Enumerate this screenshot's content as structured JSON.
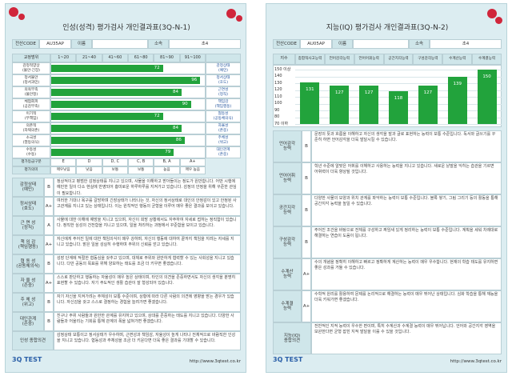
{
  "left": {
    "title": "인성(성격) 평가검사 개인결과표(3Q-N-1)",
    "info": {
      "code_label": "전산CODE",
      "code": "AU35AP",
      "name_label": "이름",
      "org_label": "소속",
      "org": "초4"
    },
    "scale": {
      "header_label": "교정범위",
      "headers": [
        "1~20",
        "21~40",
        "41~60",
        "61~80",
        "81~90",
        "91~100"
      ],
      "range": [
        0,
        100
      ],
      "rows": [
        {
          "left": "감정적양상\n(불안·긴장)",
          "right": "감정상태\n(예민)",
          "value": 72
        },
        {
          "left": "정서불안\n(정서과민)",
          "right": "정서상태\n(호도)",
          "value": 96
        },
        {
          "left": "의욕부족\n(불안정)",
          "right": "근면성\n(정직)",
          "value": 84
        },
        {
          "left": "체험회피\n(공감부족)",
          "right": "책임감\n(책임행동)",
          "value": 90
        },
        {
          "left": "이기적\n(무책임)",
          "right": "협동성\n(공동체의식)",
          "value": 72
        },
        {
          "left": "의존적\n(자택의존)",
          "right": "자율성\n(존중)",
          "value": 84
        },
        {
          "left": "소극성\n(열등의식)",
          "right": "주체성\n(위고)",
          "value": 86
        },
        {
          "left": "수동성\n(수동)",
          "right": "대인관계\n(존중)",
          "value": 79
        }
      ],
      "grade_label": "평가등급구분",
      "grades": [
        "E",
        "D",
        "D, C",
        "C, B",
        "B, A",
        "A+"
      ],
      "meaning_label": "평가의미",
      "meanings": [
        "매우낮음",
        "낮음",
        "보통",
        "보통",
        "높음",
        "매우 높음"
      ]
    },
    "details": [
      {
        "label": "감정상태\n(예민)",
        "grade": "B",
        "text": "정상적이고 평범한 감정상태를 지니고 있으며, 사물을 이해하고 받아들이는 정도가 원만합니다. 어떤 시행에 예민한 일이 다소 현실에 반영되어 흥미로운 하루하루를 지켜가고 있습니다. 감정의 안정을 위해 꾸준한 관심이 필요합니다."
      },
      {
        "label": "정서상태\n(호도)",
        "grade": "A+",
        "text": "여러한 기대나 욕구를 갈망하며 긴장상태가 나타나는 것, 자신의 정서상태로 대인의 안정감이 있고 안정된 사고관계를 지니고 있는 상태입니다. 이는 원칙적인 행동의 균형을 이루어 매우 좋은 결과를 보이고 있습니다."
      },
      {
        "label": "근 면 성\n(정직)",
        "grade": "A",
        "text": "사물에 대한 이해에 예방을 지니고 있으며, 자신이 희망 상황에서도 자주하여 자세로 접하는 정직함이 있습니다. 정직한 심성의 건전함을 지니고 있으며, 일을 처리하는 과정에서 꾸준함을 보이고 있습니다."
      },
      {
        "label": "책 임 감\n(책임행동)",
        "grade": "A+",
        "text": "자신에게 주어진 일에 대한 책임의식이 매우 강하며, 자신의 행동에 대하여 끝까지 책임을 지려는 자세를 지니고 있습니다. 맡은 일을 성실히 수행하며 주위의 신뢰를 얻고 있습니다."
      },
      {
        "label": "협 동 성\n(공동체의식)",
        "grade": "B",
        "text": "성장 단계에 적절한 협동심을 갖추고 있으며, 대체로 주위와 원만하게 협력할 수 있는 사회성을 지니고 있습니다. 다만 공동의 목표를 위해 양보하는 태도를 조금 더 키우면 좋겠습니다."
      },
      {
        "label": "자 율 성\n(존중)",
        "grade": "A+",
        "text": "스스로 판단하고 행동하는 자율성이 매우 높은 상태이며, 타인의 의견을 존중하면서도 자신의 생각을 분명히 표현할 수 있습니다. 자기 주도적인 생활 습관이 잘 형성되어 있습니다."
      },
      {
        "label": "주 체 성\n(위고)",
        "grade": "B",
        "text": "자기 자신을 지켜가려는 주체성이 보통 수준이며, 상황에 따라 다른 사람의 의견에 영향을 받는 경우가 있습니다. 자신감을 갖고 스스로 결정하는 경험을 늘려가면 좋겠습니다."
      },
      {
        "label": "대인관계\n(존중)",
        "grade": "B",
        "text": "친구나 주위 사람들과 원만한 관계를 유지하고 있으며, 상대를 존중하는 태도를 지니고 있습니다. 다양한 사람들과 어울리는 기회를 통해 관계의 폭을 넓혀가면 좋겠습니다."
      },
      {
        "label": "인성 종합의견",
        "grade": "",
        "text": "감정상태 보통이고 정서상태가 우수하며, 근면성과 책임감, 자율성이 높게 나타나 전체적으로 바람직한 인성을 지니고 있습니다. 협동성과 주체성을 조금 더 키운다면 더욱 좋은 결과를 기대할 수 있습니다."
      }
    ],
    "footer": {
      "logo": "3Q TEST",
      "url": "http://www.3qtest.co.kr"
    }
  },
  "right": {
    "title": "지능(IQ) 평가검사 개인결과표(3Q-N-2)",
    "info": {
      "code_label": "전산CODE",
      "code": "AU05AP",
      "name_label": "이름",
      "org_label": "소속",
      "org": "초4"
    },
    "chart": {
      "axis_label": "지수",
      "categories": [
        "종합적사고능력",
        "언어감각능력",
        "언어어휘능력",
        "공간지각능력",
        "구성감각능력",
        "수계산능력",
        "수계결능력"
      ],
      "values": [
        131,
        127,
        127,
        118,
        127,
        139,
        150
      ],
      "ylim": [
        70,
        150
      ],
      "yticks": [
        {
          "value": 150,
          "label": "150 이상"
        },
        140,
        130,
        120,
        110,
        100,
        90,
        80,
        {
          "value": 70,
          "label": "70 이하"
        }
      ]
    },
    "details": [
      {
        "label": "언어감각\n능력",
        "grade": "B",
        "text": "문장의 뜻과 흐름을 이해하고 자신의 생각을 말과 글로 표현하는 능력이 보통 수준입니다. 독서와 글쓰기를 꾸준히 하면 언어감각을 더욱 발달시킬 수 있습니다."
      },
      {
        "label": "언어어휘\n능력",
        "grade": "B",
        "text": "학년 수준에 알맞은 어휘를 이해하고 사용하는 능력을 지니고 있습니다. 새로운 낱말을 익히는 습관을 기르면 어휘력이 더욱 향상될 것입니다."
      },
      {
        "label": "공간지각\n능력",
        "grade": "B",
        "text": "다양한 사물의 모양과 위치 관계를 파악하는 능력이 보통 수준입니다. 블록 쌓기, 그림 그리기 등의 활동을 통해 공간지각 능력을 높일 수 있습니다."
      },
      {
        "label": "구성감각\n능력",
        "grade": "B",
        "text": "주어진 조건을 바탕으로 전체를 구성하고 짜임새 있게 정리하는 능력이 보통 수준입니다. 계획을 세워 차례대로 해결하는 연습이 도움이 됩니다."
      },
      {
        "label": "수계산\n능력",
        "grade": "A+",
        "text": "수의 개념을 정확히 이해하고 빠르고 정확하게 계산하는 능력이 매우 우수합니다. 현재의 학습 태도를 유지하면 좋은 성과를 거둘 수 있습니다."
      },
      {
        "label": "수계결\n능력",
        "grade": "A+",
        "text": "수학적 원리를 활용하여 문제를 논리적으로 해결하는 능력이 매우 뛰어난 상태입니다. 심화 학습을 통해 재능을 더욱 키워가면 좋겠습니다."
      },
      {
        "label": "지능(IQ)\n종합의견",
        "grade": "",
        "text": "전반적인 지적 능력이 우수한 편이며, 특히 수계산과 수계결 능력이 매우 뛰어납니다. 언어와 공간지각 영역을 보완한다면 균형 잡힌 지적 발달을 이룰 수 있을 것입니다."
      }
    ],
    "footer": {
      "logo": "3Q TEST",
      "url": "http://www.3qtest.co.kr"
    }
  }
}
